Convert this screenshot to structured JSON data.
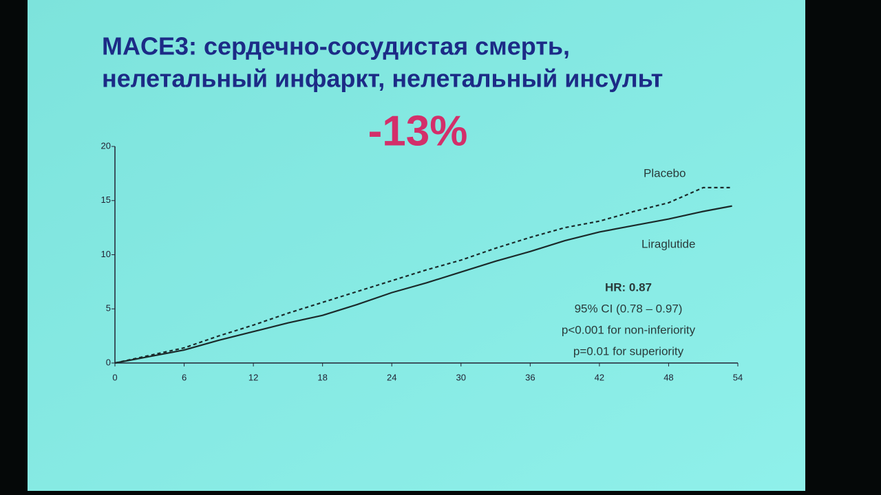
{
  "chart_data": {
    "type": "line",
    "title": [
      "MACE3: сердечно-сосудистая смерть,",
      "нелетальный инфаркт, нелетальный инсульт"
    ],
    "headline": "-13%",
    "x": [
      0,
      3,
      6,
      9,
      12,
      15,
      18,
      21,
      24,
      27,
      30,
      33,
      36,
      39,
      42,
      45,
      48,
      51,
      53.5
    ],
    "series": [
      {
        "name": "Placebo",
        "color": "#1b2a2a",
        "dashed": true,
        "values": [
          0,
          0.7,
          1.4,
          2.5,
          3.5,
          4.6,
          5.6,
          6.6,
          7.6,
          8.6,
          9.5,
          10.6,
          11.6,
          12.5,
          13.1,
          14.0,
          14.8,
          16.2,
          16.2
        ]
      },
      {
        "name": "Liraglutide",
        "color": "#1b2a2a",
        "dashed": false,
        "values": [
          0,
          0.6,
          1.2,
          2.1,
          2.9,
          3.7,
          4.4,
          5.4,
          6.5,
          7.4,
          8.4,
          9.4,
          10.3,
          11.3,
          12.1,
          12.7,
          13.3,
          14.0,
          14.5
        ]
      }
    ],
    "xlim": [
      0,
      54
    ],
    "xticks": [
      0,
      6,
      12,
      18,
      24,
      30,
      36,
      42,
      48,
      54
    ],
    "ylim": [
      0,
      20
    ],
    "yticks": [
      0,
      5,
      10,
      15,
      20
    ],
    "annotations": [
      "HR: 0.87",
      "95% CI (0.78 – 0.97)",
      "p<0.001 for non-inferiority",
      "p=0.01 for superiority"
    ]
  }
}
